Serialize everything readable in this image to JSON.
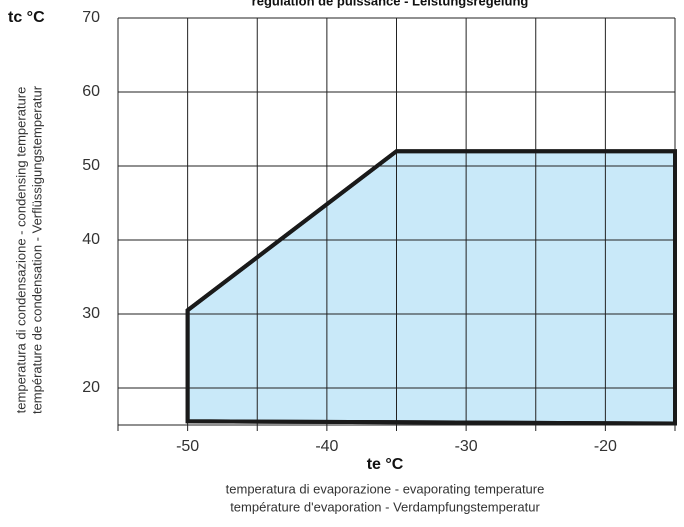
{
  "chart_data": {
    "type": "area",
    "title": "regulation de puissance - Leistungsregelung",
    "ylabel": "tc  °C",
    "xlabel": "te  °C",
    "y_title_lines": [
      "temperatura di condensazione - condensing temperature",
      "température de condensation - Verflüssigungstemperatur"
    ],
    "x_title_lines": [
      "temperatura di evaporazione  -    evaporating temperature",
      "température d'evaporation  -  Verdampfungstemperatur"
    ],
    "xlim": [
      -55,
      -15
    ],
    "xticks": [
      -50,
      -40,
      -30,
      -20
    ],
    "xminor_ticks": [
      -55,
      -45,
      -35,
      -25,
      -15
    ],
    "ylim": [
      15,
      70
    ],
    "yticks": [
      20,
      30,
      40,
      50,
      60,
      70
    ],
    "grid": true,
    "series": [
      {
        "x": [
          -50,
          -50,
          -35,
          -15,
          -15
        ],
        "values": [
          15.5,
          30.5,
          52,
          52,
          15.2
        ],
        "color": "#1a1a1a",
        "fill": "#c9e9f9"
      }
    ]
  }
}
